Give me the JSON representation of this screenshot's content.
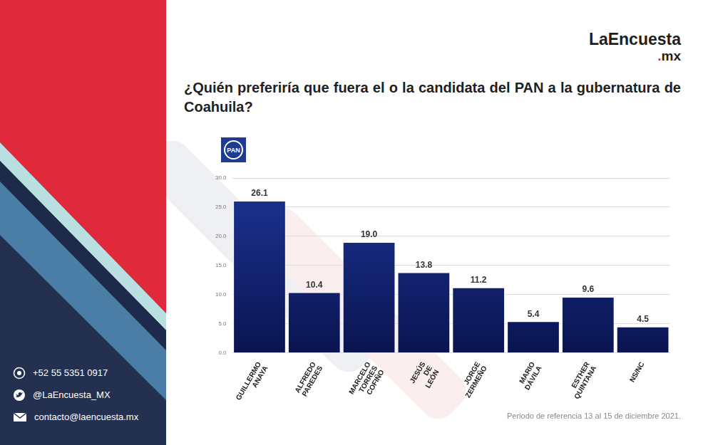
{
  "chart_data": {
    "type": "bar",
    "title": "¿Quién preferiría que fuera el o la candidata del PAN a la gubernatura de Coahuila?",
    "categories": [
      "GUILLERMO ANAYA",
      "ALFREDO PAREDES",
      "MARCELO TORRES COFIÑO",
      "JESÚS DE LEÓN",
      "JORGE ZERMEÑO",
      "MARIO DÁVILA",
      "ESTHER QUINTANA",
      "NS/NC"
    ],
    "values": [
      26.1,
      10.4,
      19.0,
      13.8,
      11.2,
      5.4,
      9.6,
      4.5
    ],
    "value_labels": [
      "26.1",
      "10.4",
      "19.0",
      "13.8",
      "11.2",
      "5.4",
      "9.6",
      "4.5"
    ],
    "color": "#1c3596",
    "ylim": [
      0,
      30
    ],
    "yticks": [
      {
        "value": 0,
        "label": "0.0"
      },
      {
        "value": 5,
        "label": "5.0"
      },
      {
        "value": 10,
        "label": "10.0"
      },
      {
        "value": 15,
        "label": "15.0"
      },
      {
        "value": 20,
        "label": "20.0"
      },
      {
        "value": 25,
        "label": "25.0"
      },
      {
        "value": 30,
        "label": "30.0"
      }
    ],
    "grid": true,
    "data_labels": true
  },
  "logo": {
    "name": "LaEncuesta",
    "suffix": ".mx"
  },
  "badge": "PAN",
  "contacts": [
    "+52 55 5351 0917",
    "@LaEncuesta_MX",
    "contacto@laencuesta.mx"
  ],
  "footer": "Periodo de referencia 13 al 15 de diciembre 2021."
}
